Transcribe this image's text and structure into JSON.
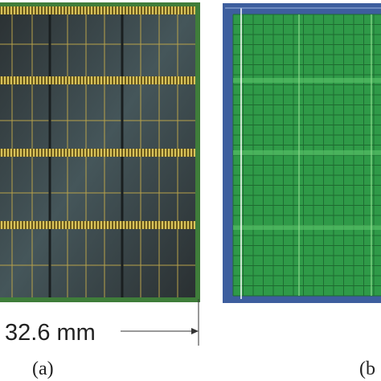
{
  "panels": [
    {
      "label": "(a)",
      "dimension": "32.6 mm"
    },
    {
      "label": "(b"
    }
  ]
}
